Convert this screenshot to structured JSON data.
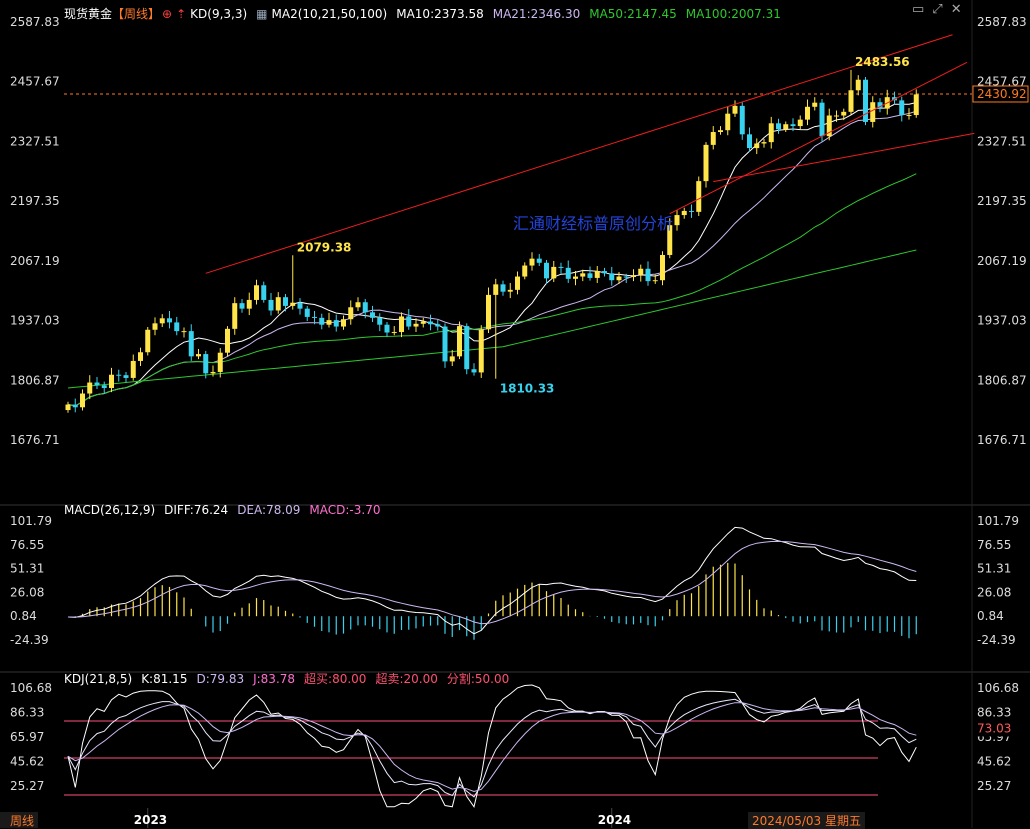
{
  "header": {
    "symbol": "现货黄金",
    "period": "【周线】",
    "kd_indicator": "KD(9,3,3)",
    "ma_set": "MA2(10,21,50,100)",
    "ma10": "MA10:2373.58",
    "ma21": "MA21:2346.30",
    "ma50": "MA50:2147.45",
    "ma100": "MA100:2007.31"
  },
  "macd_header": {
    "label": "MACD(26,12,9)",
    "diff": "DIFF:76.24",
    "dea": "DEA:78.09",
    "macd": "MACD:-3.70"
  },
  "kdj_header": {
    "label": "KDJ(21,8,5)",
    "k": "K:81.15",
    "d": "D:79.83",
    "j": "J:83.78",
    "overbought": "超买:80.00",
    "oversold": "超卖:20.00",
    "split": "分割:50.00"
  },
  "watermark": "汇通财经标普原创分析",
  "period_tag": "周线",
  "icons": [
    "close-icon",
    "up-arrow-icon",
    "indicator-icon",
    "window-icon",
    "resize-icon"
  ],
  "colors": {
    "up": "#ffe44a",
    "down": "#38d2ee",
    "ma10": "#ffffff",
    "ma21": "#ccb8f0",
    "ma50": "#2ec82e",
    "ma100": "#ffffff",
    "trend": "#f01e1e",
    "current_price": "#ff7a1e",
    "kdj_k": "#ffffff",
    "kdj_d": "#ccb8f0",
    "kdj_j": "#ff70d0"
  },
  "chart_data": [
    {
      "type": "candlestick",
      "title": "现货黄金 周线",
      "ylim": [
        1676.71,
        2587.83
      ],
      "y_ticks": [
        "2587.83",
        "2457.67",
        "2327.51",
        "2197.35",
        "2067.19",
        "1937.03",
        "1806.87",
        "1676.71"
      ],
      "x_ticks": [
        "2023",
        "2024"
      ],
      "current_price": "2430.92",
      "annotations": [
        {
          "label": "2079.38",
          "x": 31,
          "value": 2079.38
        },
        {
          "label": "1810.33",
          "x": 59,
          "value": 1810.33
        },
        {
          "label": "2483.56",
          "x": 108,
          "value": 2483.56
        }
      ],
      "closes": [
        1754,
        1748,
        1778,
        1802,
        1796,
        1790,
        1819,
        1818,
        1812,
        1849,
        1868,
        1917,
        1931,
        1942,
        1933,
        1914,
        1914,
        1859,
        1864,
        1822,
        1825,
        1867,
        1919,
        1975,
        1963,
        1982,
        2014,
        1982,
        1959,
        1988,
        1969,
        1976,
        1963,
        1945,
        1943,
        1928,
        1938,
        1924,
        1940,
        1966,
        1977,
        1955,
        1943,
        1928,
        1911,
        1912,
        1946,
        1924,
        1930,
        1935,
        1929,
        1924,
        1848,
        1859,
        1925,
        1831,
        1824,
        1918,
        1993,
        2016,
        2000,
        2004,
        2033,
        2057,
        2072,
        2063,
        2029,
        2054,
        2052,
        2028,
        2033,
        2040,
        2030,
        2045,
        2040,
        2025,
        2033,
        2032,
        2036,
        2050,
        2023,
        2025,
        2080,
        2145,
        2167,
        2176,
        2174,
        2241,
        2320,
        2348,
        2352,
        2388,
        2405,
        2343,
        2313,
        2323,
        2326,
        2367,
        2354,
        2365,
        2361,
        2375,
        2403,
        2412,
        2339,
        2384,
        2384,
        2392,
        2439,
        2462,
        2370,
        2413,
        2399,
        2424,
        2417,
        2385,
        2385,
        2430
      ],
      "ma_series": [
        {
          "name": "MA10",
          "last": 2373.58
        },
        {
          "name": "MA21",
          "last": 2346.3
        },
        {
          "name": "MA50",
          "last": 2147.45
        },
        {
          "name": "MA100",
          "last": 2007.31
        }
      ]
    },
    {
      "type": "bar",
      "title": "MACD(26,12,9)",
      "ylim": [
        -24.39,
        101.79
      ],
      "y_ticks": [
        "101.79",
        "76.55",
        "51.31",
        "26.08",
        "0.84",
        "-24.39"
      ],
      "series": [
        {
          "name": "DIFF",
          "last": 76.24
        },
        {
          "name": "DEA",
          "last": 78.09
        },
        {
          "name": "MACD",
          "last": -3.7
        }
      ]
    },
    {
      "type": "line",
      "title": "KDJ(21,8,5)",
      "ylim": [
        25.27,
        106.68
      ],
      "y_ticks": [
        "106.68",
        "86.33",
        "65.97",
        "45.62",
        "25.27"
      ],
      "marker": "73.03",
      "levels": [
        80,
        50,
        20
      ],
      "series": [
        {
          "name": "K",
          "last": 81.15
        },
        {
          "name": "D",
          "last": 79.83
        },
        {
          "name": "J",
          "last": 83.78
        }
      ]
    }
  ],
  "footer": {
    "date": "2024/05/03 星期五"
  }
}
